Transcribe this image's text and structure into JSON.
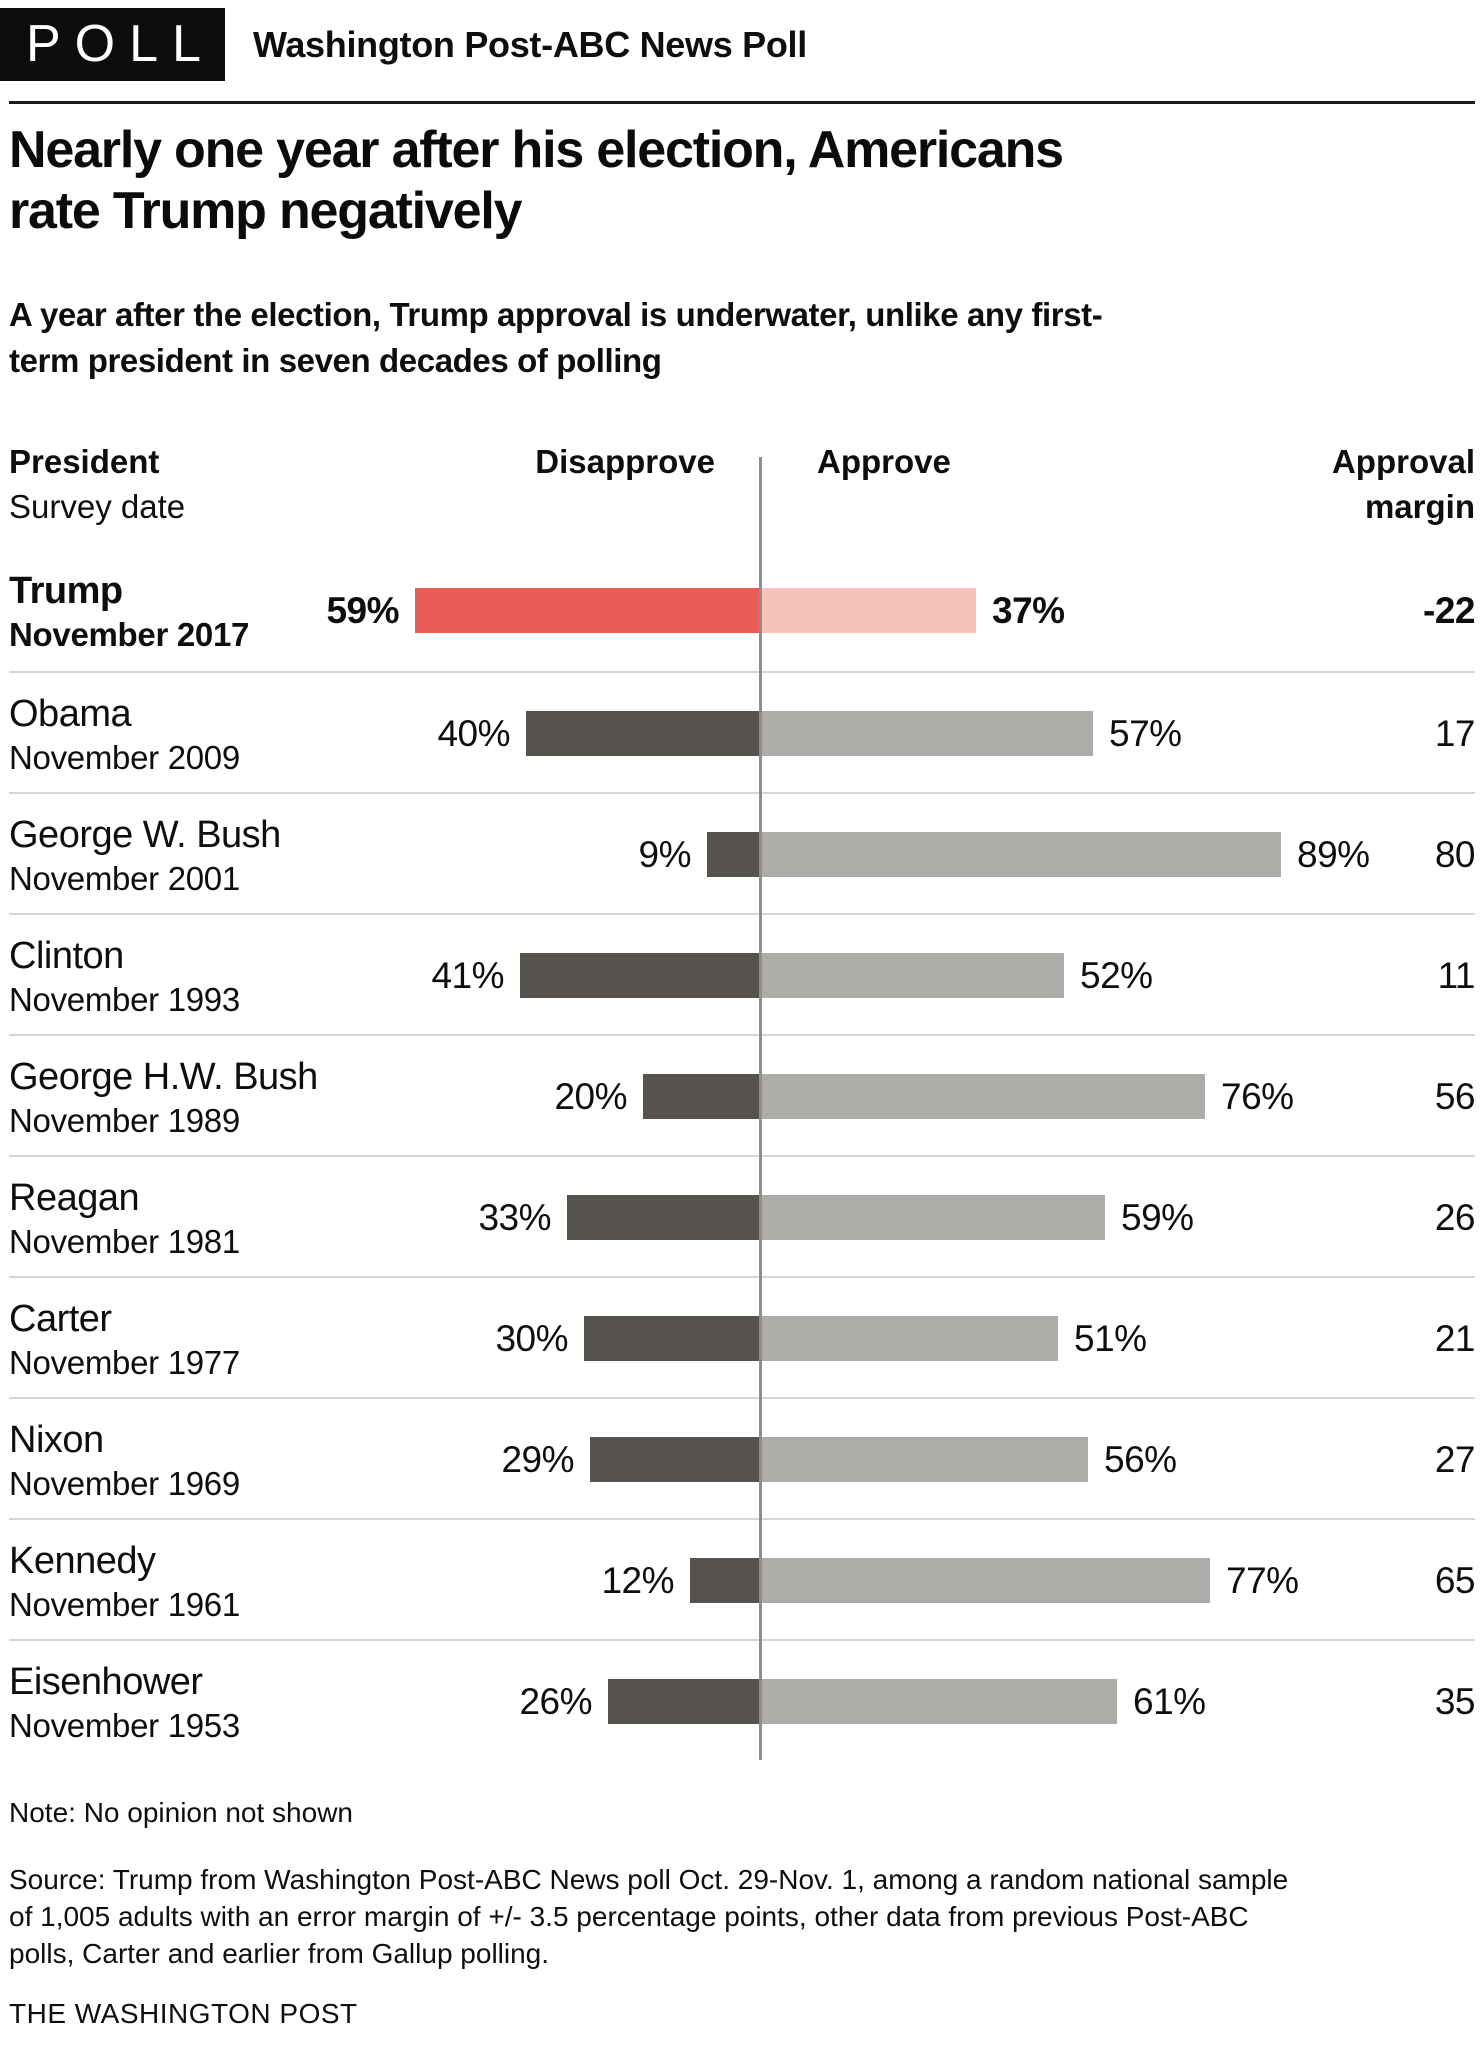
{
  "header": {
    "badge": "POLL",
    "kicker": "Washington Post-ABC News Poll"
  },
  "headline": "Nearly one year after his election, Americans rate Trump negatively",
  "subtitle": "A year after the election, Trump approval is underwater, unlike any first-term president in seven decades of polling",
  "chart_data": {
    "type": "bar",
    "variant": "horizontal-diverging",
    "unit": "%",
    "col_headers": {
      "president": "President",
      "survey_date": "Survey date",
      "disapprove": "Disapprove",
      "approve": "Approve",
      "margin": "Approval margin"
    },
    "rows": [
      {
        "president": "Trump",
        "date": "November 2017",
        "disapprove": 59,
        "approve": 37,
        "margin": "-22",
        "emphasis": true
      },
      {
        "president": "Obama",
        "date": "November 2009",
        "disapprove": 40,
        "approve": 57,
        "margin": "17"
      },
      {
        "president": "George W. Bush",
        "date": "November 2001",
        "disapprove": 9,
        "approve": 89,
        "margin": "80"
      },
      {
        "president": "Clinton",
        "date": "November 1993",
        "disapprove": 41,
        "approve": 52,
        "margin": "11"
      },
      {
        "president": "George H.W. Bush",
        "date": "November 1989",
        "disapprove": 20,
        "approve": 76,
        "margin": "56"
      },
      {
        "president": "Reagan",
        "date": "November 1981",
        "disapprove": 33,
        "approve": 59,
        "margin": "26"
      },
      {
        "president": "Carter",
        "date": "November 1977",
        "disapprove": 30,
        "approve": 51,
        "margin": "21"
      },
      {
        "president": "Nixon",
        "date": "November 1969",
        "disapprove": 29,
        "approve": 56,
        "margin": "27"
      },
      {
        "president": "Kennedy",
        "date": "November 1961",
        "disapprove": 12,
        "approve": 77,
        "margin": "65"
      },
      {
        "president": "Eisenhower",
        "date": "November 1953",
        "disapprove": 26,
        "approve": 61,
        "margin": "35"
      }
    ],
    "colors": {
      "emphasis_disapprove": "#e95d58",
      "emphasis_approve": "#f6c3bc",
      "disapprove": "#56534e",
      "approve": "#aeaca8",
      "axis_line": "#8e8e8e",
      "row_separator": "#d8d6d3"
    }
  },
  "note": "Note: No opinion not shown",
  "source": "Source: Trump from Washington Post-ABC News poll Oct. 29-Nov. 1, among a random national sample of 1,005 adults with an error margin of +/- 3.5 percentage points, other data from previous Post-ABC polls, Carter and earlier from Gallup polling.",
  "footer": "THE WASHINGTON POST"
}
